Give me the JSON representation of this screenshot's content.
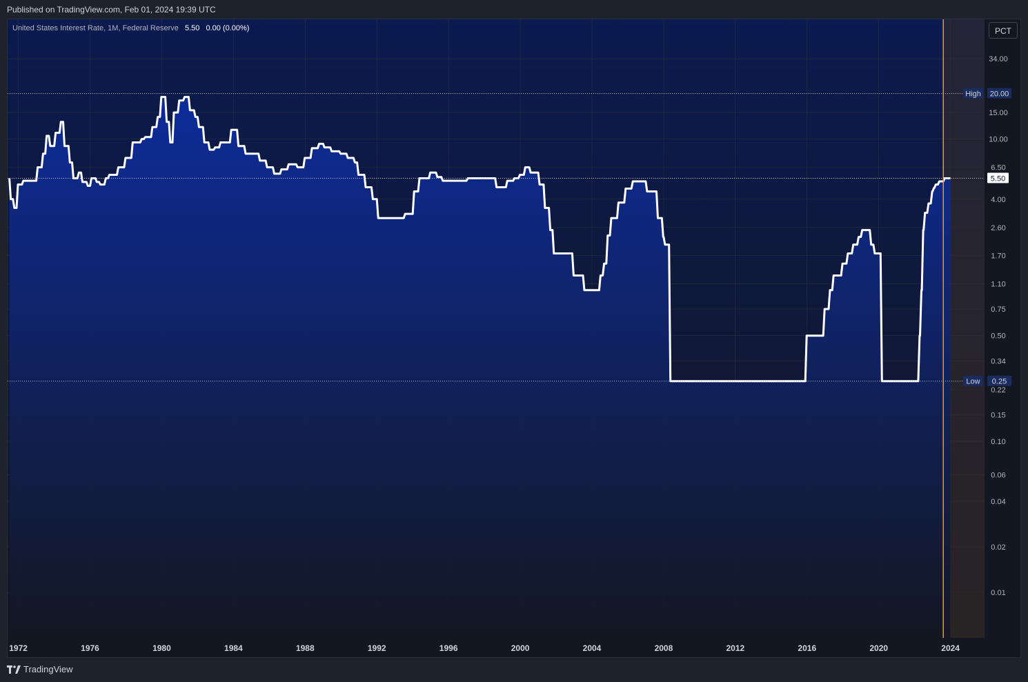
{
  "header": {
    "published": "Published on TradingView.com, Feb 01, 2024 19:39 UTC"
  },
  "legend": {
    "title": "United States Interest Rate, 1M, Federal Reserve",
    "last_value": "5.50",
    "change": "0.00 (0.00%)"
  },
  "scale_button": {
    "label": "PCT"
  },
  "footer": {
    "brand": "TradingView"
  },
  "colors": {
    "background": "#131722",
    "line": "#ffffff",
    "fill_top": "#0d2d9e",
    "fill_bottom": "#131722",
    "highlight_line": "#f7931a",
    "high_low_label_bg": "#1a2b5e"
  },
  "chart_data": {
    "type": "area",
    "title": "United States Interest Rate, 1M, Federal Reserve",
    "y_scale": "log",
    "ylim": [
      0.005,
      62
    ],
    "xlim": [
      1971.4,
      2025.9
    ],
    "x_ticks": [
      "1972",
      "1976",
      "1980",
      "1984",
      "1988",
      "1992",
      "1996",
      "2000",
      "2004",
      "2008",
      "2012",
      "2016",
      "2020",
      "2024"
    ],
    "y_ticks": [
      "34.00",
      "20.00",
      "15.00",
      "10.00",
      "6.50",
      "5.50",
      "4.00",
      "2.60",
      "1.70",
      "1.10",
      "0.75",
      "0.50",
      "0.34",
      "0.22",
      "0.15",
      "0.10",
      "0.06",
      "0.04",
      "0.02",
      "0.01"
    ],
    "high": {
      "label": "High",
      "value": "20.00"
    },
    "low": {
      "label": "Low",
      "value": "0.25"
    },
    "last": "5.50",
    "highlight_x": 2023.6,
    "series": [
      {
        "x": [
          1971.5,
          1971.7,
          1971.9,
          1972.2,
          1972.5,
          1973.0,
          1973.3,
          1973.5,
          1973.7,
          1974.0,
          1974.3,
          1974.5,
          1974.8,
          1975.0,
          1975.3,
          1975.5,
          1975.8,
          1976.0,
          1976.3,
          1976.5,
          1976.8,
          1977.0,
          1977.5,
          1977.9,
          1978.3,
          1978.8,
          1979.0,
          1979.4,
          1979.7,
          1979.9,
          1980.2,
          1980.4,
          1980.6,
          1980.9,
          1981.2,
          1981.5,
          1981.8,
          1982.0,
          1982.3,
          1982.6,
          1982.9,
          1983.2,
          1983.8,
          1984.2,
          1984.6,
          1985.0,
          1985.4,
          1985.8,
          1986.2,
          1986.6,
          1987.0,
          1987.5,
          1987.9,
          1988.3,
          1988.7,
          1989.0,
          1989.4,
          1989.9,
          1990.3,
          1990.7,
          1990.9,
          1991.3,
          1991.7,
          1992.0,
          1992.5,
          1993.0,
          1993.5,
          1994.0,
          1994.3,
          1994.6,
          1994.9,
          1995.3,
          1995.6,
          1996.0,
          1997.0,
          1997.5,
          1998.0,
          1998.6,
          1998.9,
          1999.2,
          1999.6,
          1999.9,
          2000.2,
          2000.5,
          2001.0,
          2001.3,
          2001.6,
          2001.8,
          2002.0,
          2002.9,
          2003.5,
          2004.4,
          2004.6,
          2004.8,
          2005.0,
          2005.4,
          2005.8,
          2006.2,
          2006.5,
          2007.0,
          2007.6,
          2007.9,
          2008.0,
          2008.2,
          2008.3,
          2008.5,
          2008.9,
          2015.9,
          2016.9,
          2017.2,
          2017.4,
          2017.9,
          2018.2,
          2018.5,
          2018.8,
          2019.0,
          2019.5,
          2019.7,
          2019.9,
          2020.1,
          2020.2,
          2022.2,
          2022.3,
          2022.4,
          2022.5,
          2022.7,
          2022.9,
          2023.0,
          2023.1,
          2023.3,
          2023.6,
          2024.0
        ],
        "y": [
          5.5,
          4.0,
          3.5,
          5.0,
          5.3,
          5.3,
          6.5,
          8.0,
          10.5,
          9.0,
          11.0,
          13.0,
          9.0,
          7.0,
          5.5,
          6.0,
          5.2,
          4.9,
          5.5,
          5.2,
          5.0,
          5.5,
          5.8,
          6.5,
          7.5,
          9.5,
          10.0,
          10.3,
          12.0,
          14.0,
          19.0,
          13.0,
          9.5,
          15.0,
          18.0,
          19.0,
          15.5,
          14.0,
          12.0,
          9.5,
          8.5,
          8.8,
          9.5,
          11.5,
          9.0,
          8.0,
          8.0,
          7.2,
          6.5,
          5.9,
          6.3,
          6.8,
          6.5,
          7.5,
          8.7,
          9.3,
          8.8,
          8.3,
          8.0,
          7.5,
          7.0,
          5.8,
          4.8,
          4.0,
          3.0,
          3.0,
          3.0,
          3.2,
          4.5,
          5.5,
          5.5,
          6.0,
          5.6,
          5.3,
          5.3,
          5.5,
          5.5,
          5.5,
          4.8,
          4.8,
          5.3,
          5.5,
          5.8,
          6.5,
          6.0,
          5.0,
          3.5,
          2.5,
          1.75,
          1.75,
          1.25,
          1.0,
          1.25,
          1.5,
          2.3,
          3.0,
          3.8,
          4.7,
          5.25,
          5.25,
          4.5,
          3.0,
          2.25,
          2.0,
          2.0,
          0.25,
          0.25,
          0.25,
          0.5,
          0.75,
          1.0,
          1.25,
          1.5,
          1.75,
          2.0,
          2.25,
          2.5,
          2.0,
          1.75,
          1.75,
          0.25,
          0.25,
          0.5,
          1.0,
          2.5,
          3.25,
          3.75,
          4.5,
          4.75,
          5.0,
          5.25,
          5.5
        ]
      }
    ]
  }
}
